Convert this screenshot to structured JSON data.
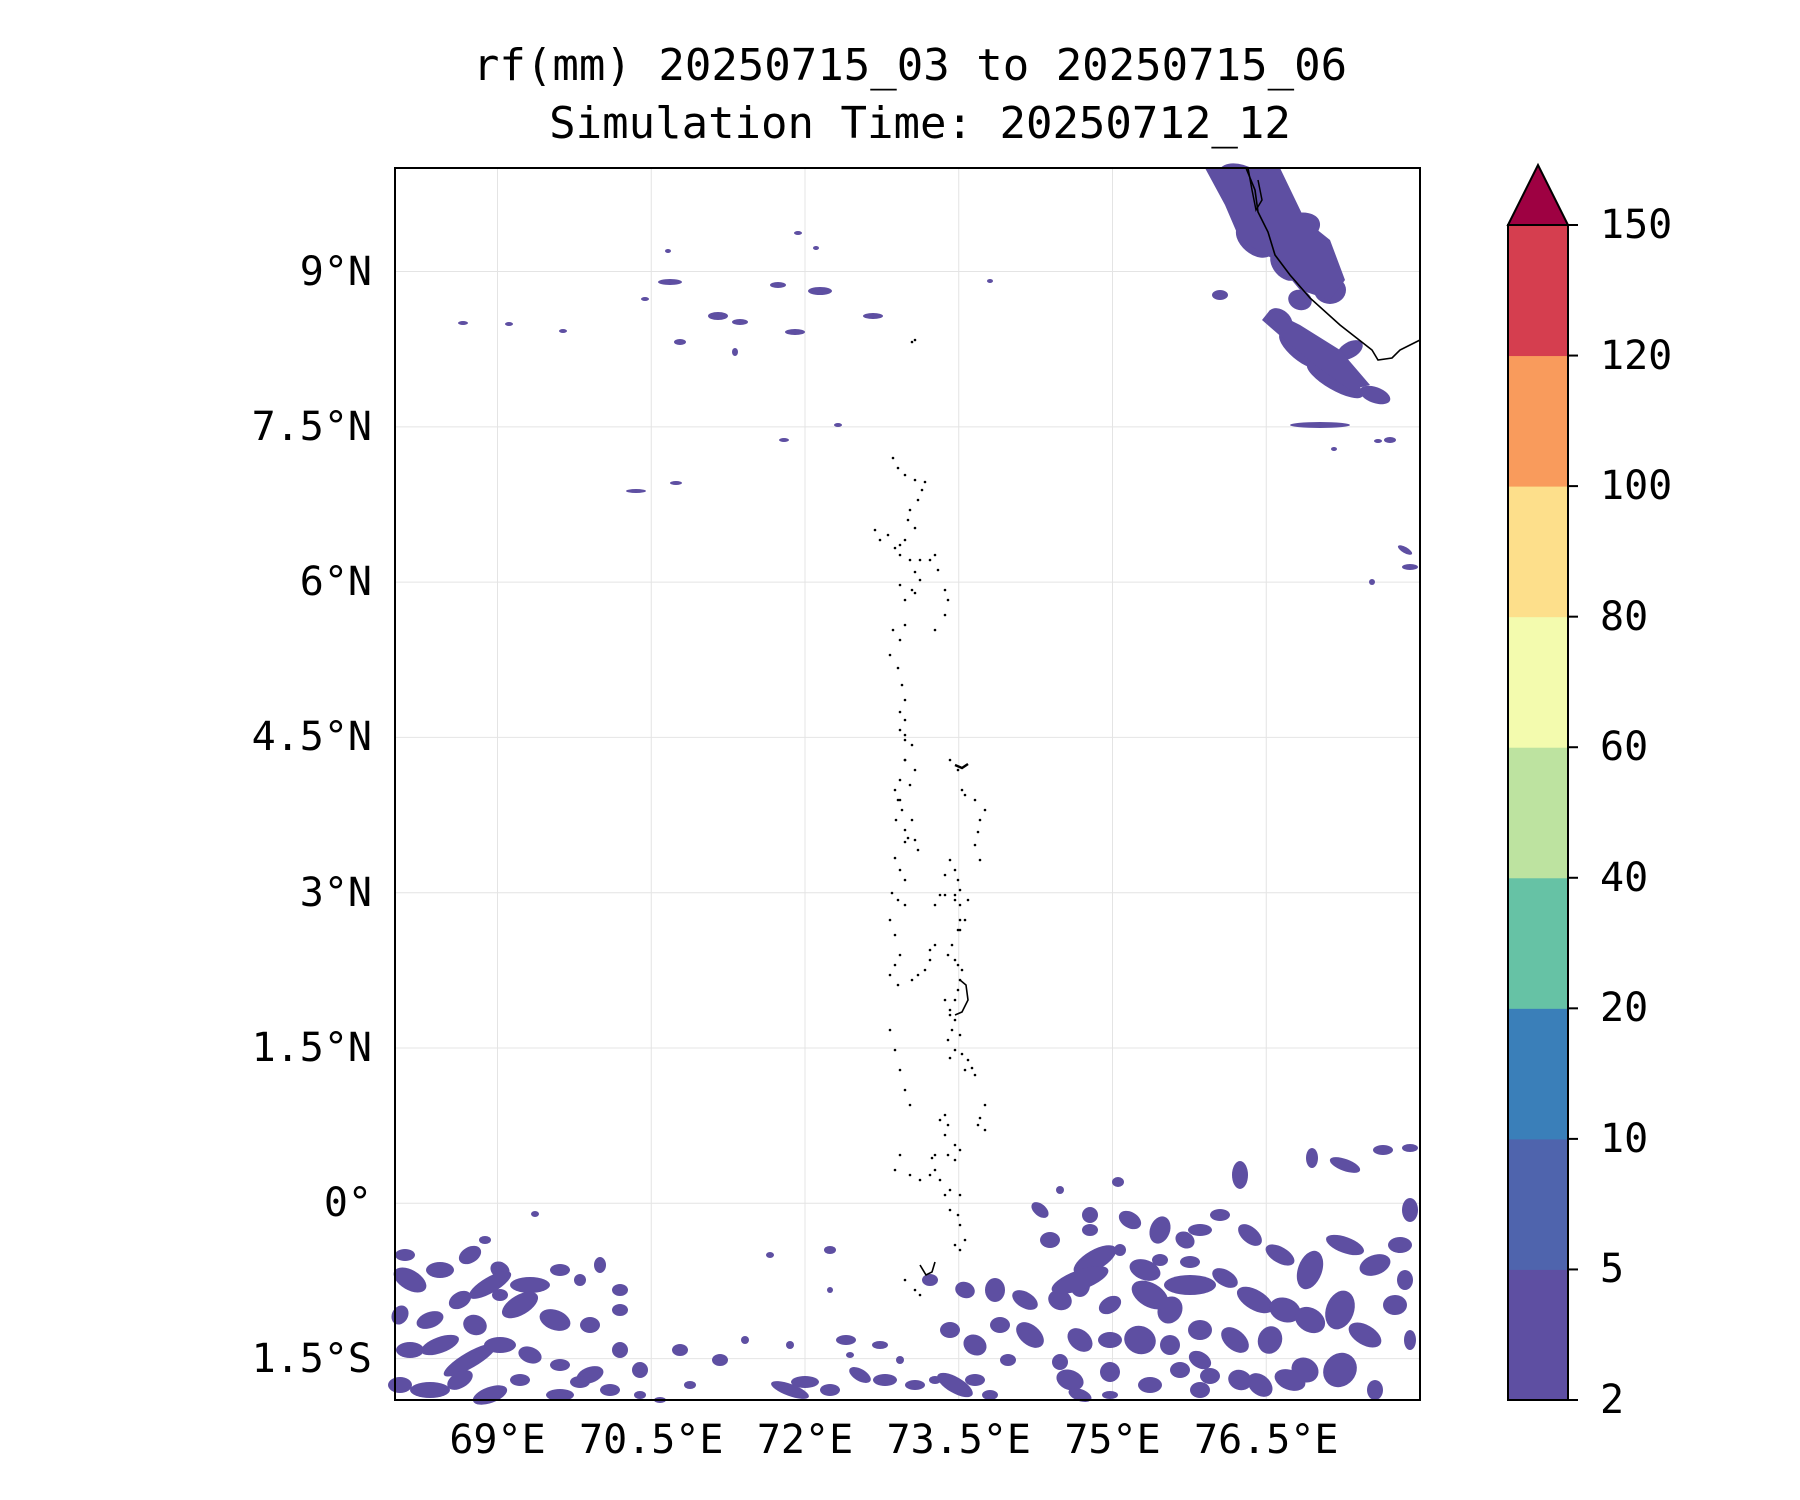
{
  "title": {
    "line1": "rf(mm) 20250715_03 to 20250715_06",
    "line2": "Simulation Time: 20250712_12"
  },
  "map": {
    "lon_range": [
      68.0,
      78.0
    ],
    "lat_range": [
      -1.9,
      10.0
    ],
    "x_ticks": [
      {
        "value": 69.0,
        "label": "69°E"
      },
      {
        "value": 70.5,
        "label": "70.5°E"
      },
      {
        "value": 72.0,
        "label": "72°E"
      },
      {
        "value": 73.5,
        "label": "73.5°E"
      },
      {
        "value": 75.0,
        "label": "75°E"
      },
      {
        "value": 76.5,
        "label": "76.5°E"
      }
    ],
    "y_ticks": [
      {
        "value": 9.0,
        "label": "9°N"
      },
      {
        "value": 7.5,
        "label": "7.5°N"
      },
      {
        "value": 6.0,
        "label": "6°N"
      },
      {
        "value": 4.5,
        "label": "4.5°N"
      },
      {
        "value": 3.0,
        "label": "3°N"
      },
      {
        "value": 1.5,
        "label": "1.5°N"
      },
      {
        "value": 0.0,
        "label": "0°"
      },
      {
        "value": -1.5,
        "label": "1.5°S"
      }
    ],
    "grid": true,
    "rain_color": "#5e4fa2"
  },
  "colorbar": {
    "levels": [
      2,
      5,
      10,
      20,
      40,
      60,
      80,
      100,
      120,
      150
    ],
    "labels": [
      "2",
      "5",
      "10",
      "20",
      "40",
      "60",
      "80",
      "100",
      "120",
      "150"
    ],
    "colors": [
      "#5e4fa2",
      "#4f64ad",
      "#3a7fb9",
      "#66c2a5",
      "#bde3a0",
      "#f3fbae",
      "#fddf8b",
      "#f99b5c",
      "#d53e4f"
    ],
    "extend_color": "#9e0142",
    "extend": "max"
  }
}
